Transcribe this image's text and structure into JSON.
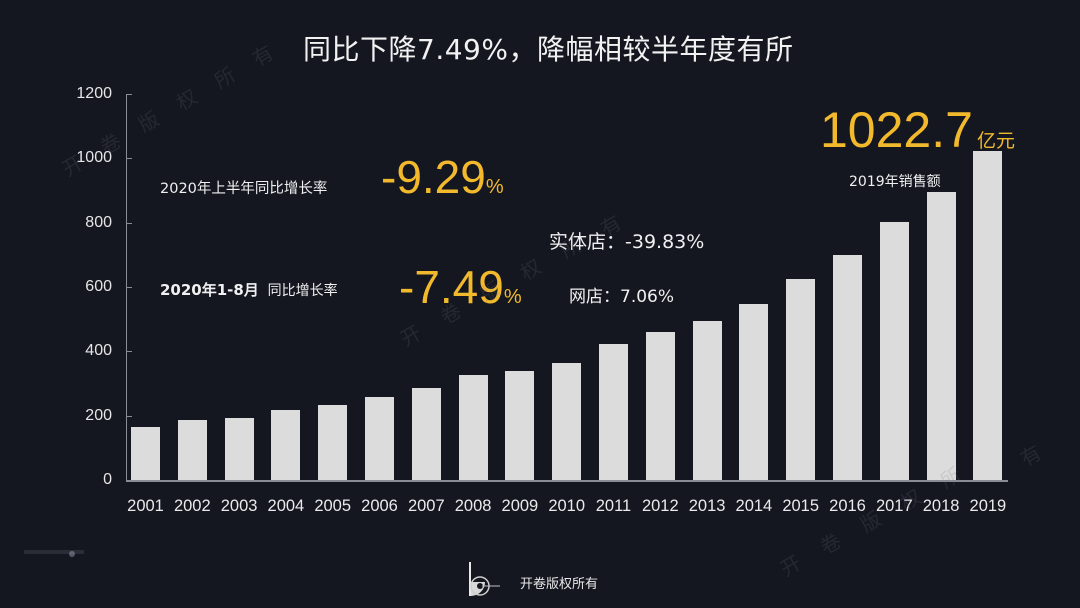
{
  "header": {
    "title": "同比下降7.49%，降幅相较半年度有所"
  },
  "annotations": {
    "h1_label": "2020年上半年同比增长率",
    "h1_value": "-9.29",
    "h1_unit": "%",
    "jan_aug_label_bold": "2020年1-8月",
    "jan_aug_label": "同比增长率",
    "jan_aug_value": "-7.49",
    "jan_aug_unit": "%",
    "physical_store": "实体店：-39.83%",
    "online_store": "网店：7.06%",
    "sales_2019_value": "1022.7",
    "sales_2019_unit": "亿元",
    "sales_2019_label": "2019年销售额"
  },
  "footer": {
    "logo_icon": "kaijuan-logo-icon",
    "text": "开卷版权所有"
  },
  "watermark": [
    "开",
    "卷",
    "版",
    "权",
    "所",
    "有"
  ],
  "colors": {
    "background": "#141620",
    "bar": "#dcdcdc",
    "accent_yellow": "#f2b92c",
    "axis": "#8a8d96",
    "text": "#f0f0f0"
  },
  "chart_data": {
    "type": "bar",
    "title": "同比下降7.49%，降幅相较半年度有所",
    "xlabel": "",
    "ylabel": "",
    "unit": "亿元",
    "ylim": [
      0,
      1200
    ],
    "yticks": [
      0,
      200,
      400,
      600,
      800,
      1000,
      1200
    ],
    "grid": false,
    "legend": null,
    "categories": [
      "2001",
      "2002",
      "2003",
      "2004",
      "2005",
      "2006",
      "2007",
      "2008",
      "2009",
      "2010",
      "2011",
      "2012",
      "2013",
      "2014",
      "2015",
      "2016",
      "2017",
      "2018",
      "2019"
    ],
    "values": [
      165,
      186,
      193,
      218,
      233,
      258,
      286,
      326,
      339,
      364,
      423,
      460,
      494,
      547,
      625,
      699,
      802,
      895,
      1022.7
    ],
    "annotations": [
      "2020年上半年同比增长率 -9.29%",
      "2020年1-8月 同比增长率 -7.49%",
      "实体店：-39.83%",
      "网店：7.06%",
      "1022.7亿元 2019年销售额"
    ]
  }
}
